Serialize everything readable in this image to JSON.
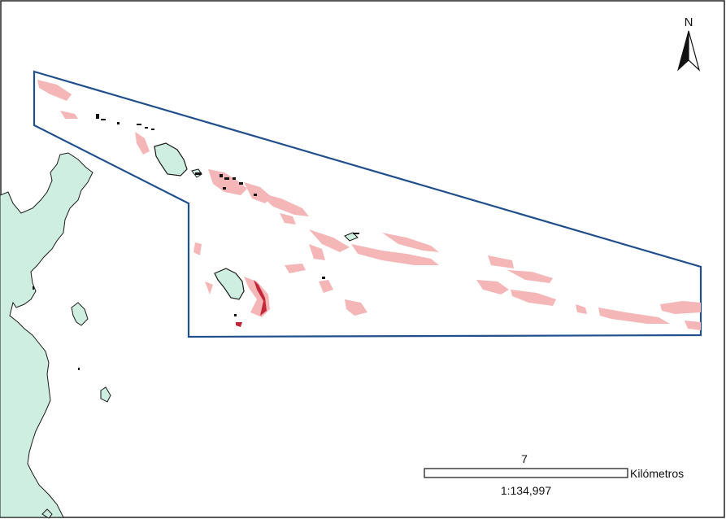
{
  "colors": {
    "land": "#cdeee0",
    "land_stroke": "#1a1a1a",
    "boundary": "#1f4f8c",
    "seagrass": "#f4b6b6",
    "seagrass_dark": "#c2283a",
    "rock": "#111111",
    "frame": "#222222"
  },
  "north_arrow": {
    "label": "N"
  },
  "scale_bar": {
    "distance_label": "7",
    "unit_label": "Kilómetros",
    "scale_text": "1:134,997"
  }
}
